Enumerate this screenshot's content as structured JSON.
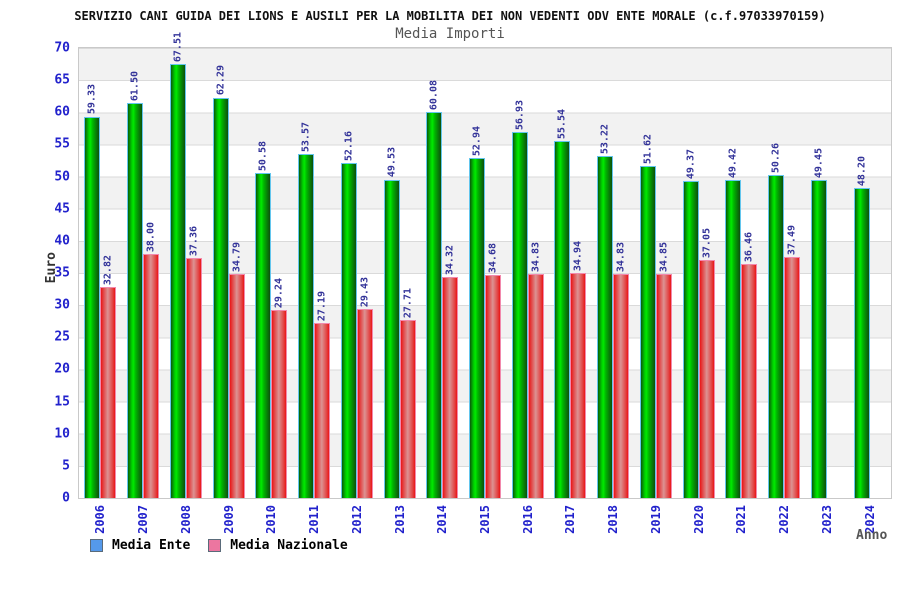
{
  "chart_data": {
    "type": "bar",
    "title": "SERVIZIO CANI GUIDA DEI LIONS E AUSILI PER LA MOBILITA DEI NON VEDENTI ODV ENTE MORALE (c.f.97033970159)",
    "subtitle": "Media Importi",
    "xlabel": "Anno",
    "ylabel": "Euro",
    "ylim": [
      0,
      70
    ],
    "ytick_step": 5,
    "grid": "horizontal gridlines every 5, alternating gray/white bands",
    "legend_position": "bottom-left",
    "value_label_color": "#333399",
    "axis_tick_color": "#2222cc",
    "categories": [
      "2006",
      "2007",
      "2008",
      "2009",
      "2010",
      "2011",
      "2012",
      "2013",
      "2014",
      "2015",
      "2016",
      "2017",
      "2018",
      "2019",
      "2020",
      "2021",
      "2022",
      "2023",
      "2024"
    ],
    "series": [
      {
        "name": "Media Ente",
        "legend_swatch": "#5599ea",
        "bar_bright": "#00ea00",
        "bar_dark": "#0a5a0a",
        "bar_outline": "#63c6ee",
        "values": [
          59.33,
          61.5,
          67.51,
          62.29,
          50.58,
          53.57,
          52.16,
          49.53,
          60.08,
          52.94,
          56.93,
          55.54,
          53.22,
          51.62,
          49.37,
          49.42,
          50.26,
          49.45,
          48.2
        ]
      },
      {
        "name": "Media Nazionale",
        "legend_swatch": "#ec76a0",
        "bar_edge": "#ea1515",
        "bar_center": "#dc9292",
        "bar_outline": "#f289ad",
        "values": [
          32.82,
          38.0,
          37.36,
          34.79,
          29.24,
          27.19,
          29.43,
          27.71,
          34.32,
          34.68,
          34.83,
          34.94,
          34.83,
          34.85,
          37.05,
          36.46,
          37.49,
          null,
          null
        ]
      }
    ]
  }
}
